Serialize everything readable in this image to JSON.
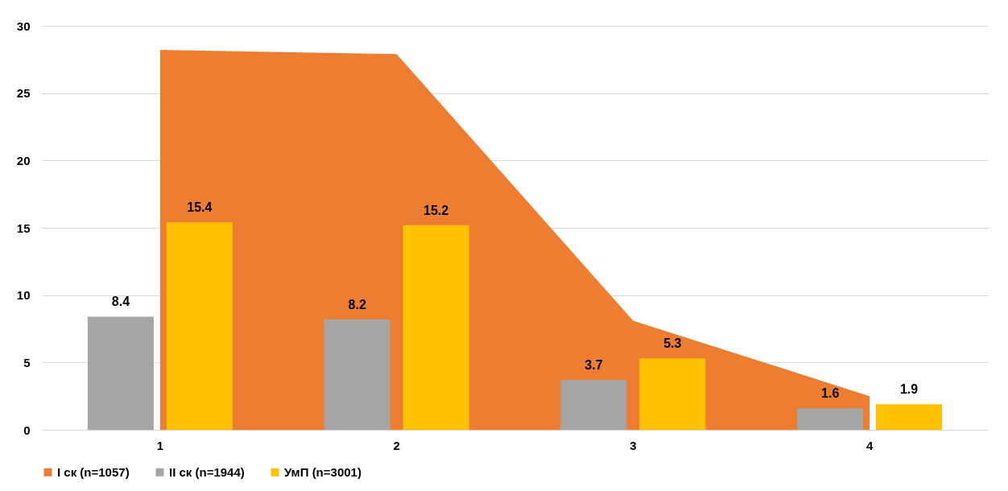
{
  "chart_data": {
    "type": "bar",
    "categories": [
      "1",
      "2",
      "3",
      "4"
    ],
    "series": [
      {
        "name": "I ск (n=1057)",
        "type": "area",
        "color": "#ed7d31",
        "values": [
          28.2,
          27.9,
          8.1,
          2.5
        ]
      },
      {
        "name": "II ск (n=1944)",
        "color": "#a5a5a5",
        "values": [
          8.4,
          8.2,
          3.7,
          1.6
        ],
        "value_labels": [
          "8.4",
          "8.2",
          "3.7",
          "1.6"
        ]
      },
      {
        "name": "УмП (n=3001)",
        "color": "#ffc000",
        "values": [
          15.4,
          15.2,
          5.3,
          1.9
        ],
        "value_labels": [
          "15.4",
          "15.2",
          "5.3",
          "1.9"
        ]
      }
    ],
    "ylim": [
      0,
      30
    ],
    "yticks": [
      0,
      5,
      10,
      15,
      20,
      25,
      30
    ],
    "grid": "y",
    "legend": "bottom"
  }
}
